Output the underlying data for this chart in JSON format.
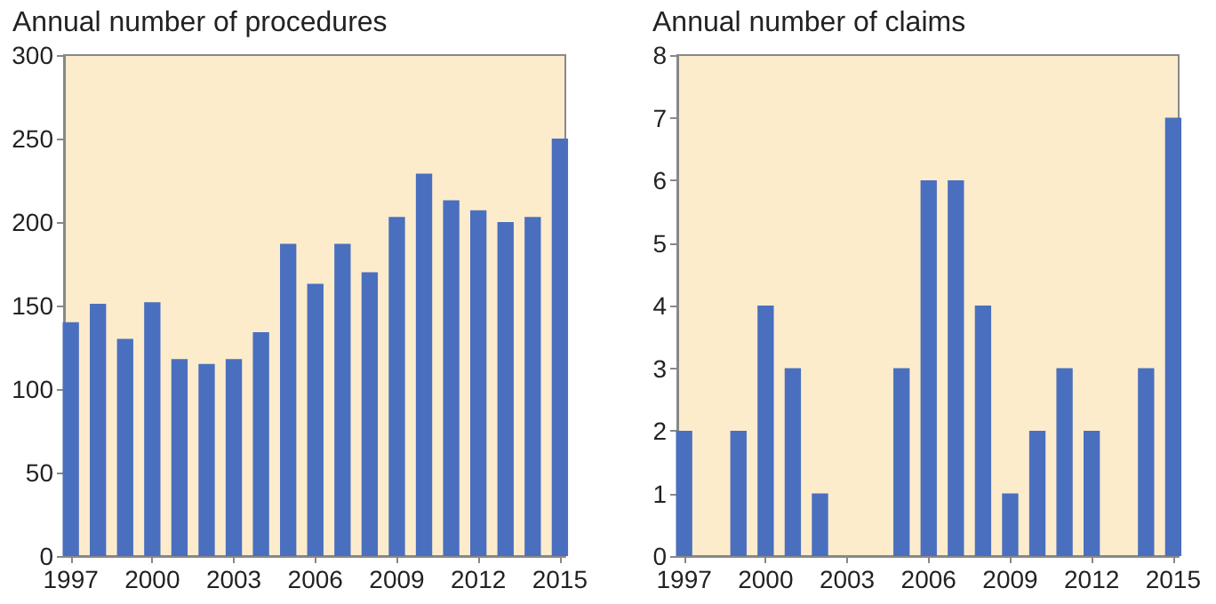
{
  "chart_data": [
    {
      "type": "bar",
      "title": "Annual number of procedures",
      "x": [
        1997,
        1998,
        1999,
        2000,
        2001,
        2002,
        2003,
        2004,
        2005,
        2006,
        2007,
        2008,
        2009,
        2010,
        2011,
        2012,
        2013,
        2014,
        2015
      ],
      "values": [
        140,
        151,
        130,
        152,
        118,
        115,
        118,
        134,
        187,
        163,
        187,
        170,
        203,
        229,
        213,
        207,
        200,
        203,
        250
      ],
      "color": "#4a6fbe",
      "xlim": [
        1996.75,
        2015.2
      ],
      "xticks": [
        1997,
        2000,
        2003,
        2006,
        2009,
        2012,
        2015
      ],
      "ylim": [
        0,
        300
      ],
      "yticks": [
        0,
        50,
        100,
        150,
        200,
        250,
        300
      ],
      "grid": false
    },
    {
      "type": "bar",
      "title": "Annual number of claims",
      "x": [
        1997,
        1998,
        1999,
        2000,
        2001,
        2002,
        2003,
        2004,
        2005,
        2006,
        2007,
        2008,
        2009,
        2010,
        2011,
        2012,
        2013,
        2014,
        2015
      ],
      "values": [
        2,
        0,
        2,
        4,
        3,
        1,
        0,
        0,
        3,
        6,
        6,
        4,
        1,
        2,
        3,
        2,
        0,
        3,
        7
      ],
      "color": "#4a6fbe",
      "xlim": [
        1996.75,
        2015.2
      ],
      "xticks": [
        1997,
        2000,
        2003,
        2006,
        2009,
        2012,
        2015
      ],
      "ylim": [
        0,
        8
      ],
      "yticks": [
        0,
        1,
        2,
        3,
        4,
        5,
        6,
        7,
        8
      ],
      "grid": false
    }
  ]
}
